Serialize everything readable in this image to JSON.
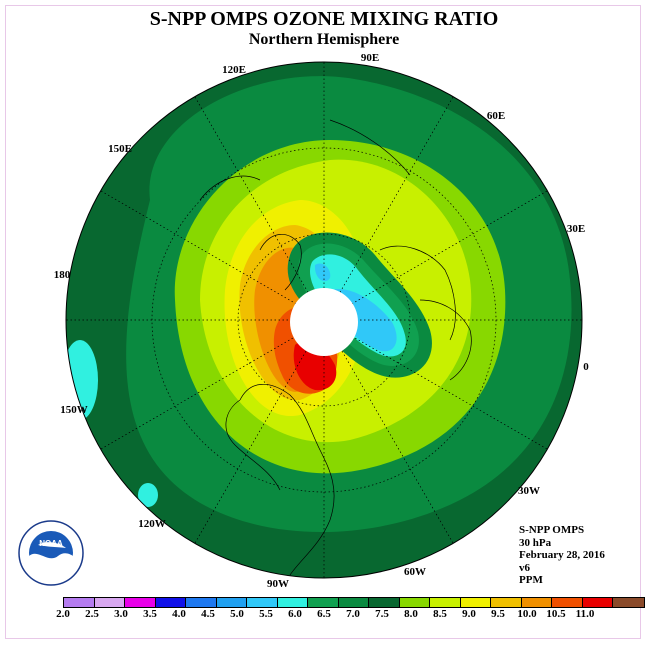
{
  "title": "S-NPP OMPS OZONE MIXING RATIO",
  "subtitle": "Northern Hemisphere",
  "longitude_labels": [
    "90E",
    "60E",
    "30E",
    "0",
    "30W",
    "60W",
    "90W",
    "120W",
    "150W",
    "180",
    "150E",
    "120E"
  ],
  "info": {
    "instrument": "S-NPP OMPS",
    "level": "30 hPa",
    "date": "February 28, 2016",
    "version": "v6",
    "units": "PPM"
  },
  "colorbar": {
    "ticks": [
      "2.0",
      "2.5",
      "3.0",
      "3.5",
      "4.0",
      "4.5",
      "5.0",
      "5.5",
      "6.0",
      "6.5",
      "7.0",
      "7.5",
      "8.0",
      "8.5",
      "9.0",
      "9.5",
      "10.0",
      "10.5",
      "11.0"
    ],
    "colors": [
      "#b57cf0",
      "#d8a8f0",
      "#e800e8",
      "#1010e8",
      "#1e78f0",
      "#20a0f0",
      "#30c8f8",
      "#30f0e0",
      "#10a050",
      "#0a8a40",
      "#086830",
      "#88d800",
      "#c8f000",
      "#f0f000",
      "#f0c000",
      "#f09000",
      "#f05000",
      "#e80000",
      "#8a4a2a"
    ]
  },
  "logo": {
    "text": "NOAA",
    "icon": "noaa-logo-icon"
  }
}
